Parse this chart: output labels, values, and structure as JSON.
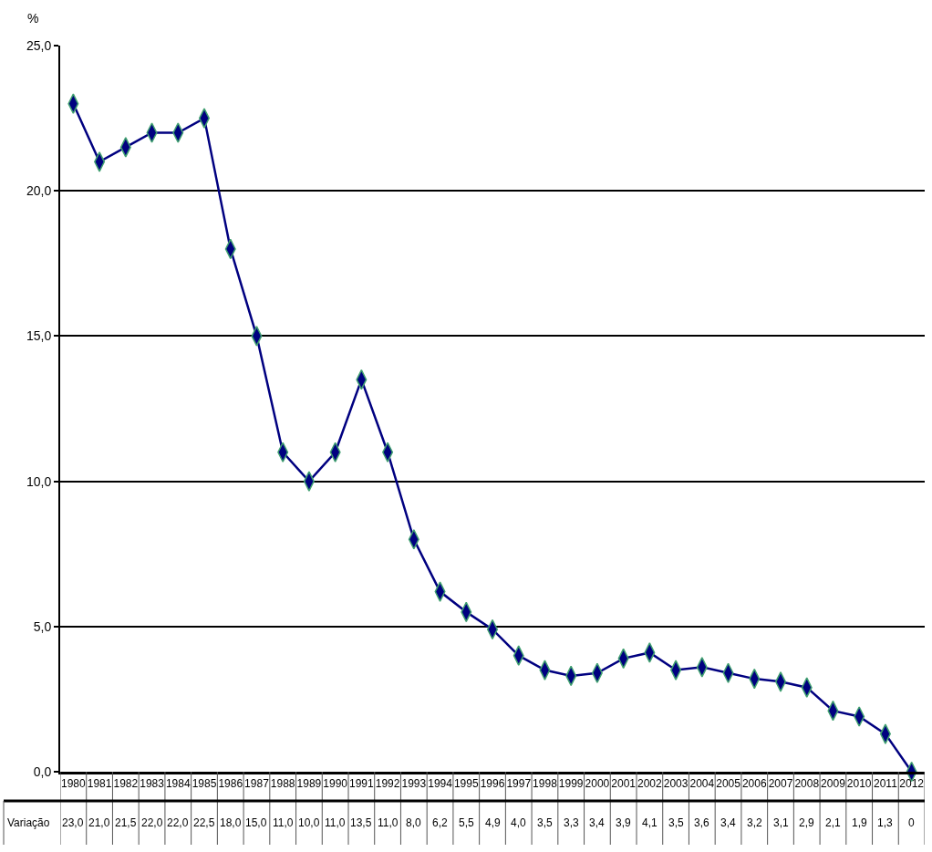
{
  "chart_data": {
    "type": "line",
    "ylabel": "%",
    "categories": [
      "1980",
      "1981",
      "1982",
      "1983",
      "1984",
      "1985",
      "1986",
      "1987",
      "1988",
      "1989",
      "1990",
      "1991",
      "1992",
      "1993",
      "1994",
      "1995",
      "1996",
      "1997",
      "1998",
      "1999",
      "2000",
      "2001",
      "2002",
      "2003",
      "2004",
      "2005",
      "2006",
      "2007",
      "2008",
      "2009",
      "2010",
      "2011",
      "2012"
    ],
    "series": [
      {
        "name": "Variação",
        "color": "#000080",
        "values": [
          23.0,
          21.0,
          21.5,
          22.0,
          22.0,
          22.5,
          18.0,
          15.0,
          11.0,
          10.0,
          11.0,
          13.5,
          11.0,
          8.0,
          6.2,
          5.5,
          4.9,
          4.0,
          3.5,
          3.3,
          3.4,
          3.9,
          4.1,
          3.5,
          3.6,
          3.4,
          3.2,
          3.1,
          2.9,
          2.1,
          1.9,
          1.3,
          0
        ],
        "value_labels": [
          "23,0",
          "21,0",
          "21,5",
          "22,0",
          "22,0",
          "22,5",
          "18,0",
          "15,0",
          "11,0",
          "10,0",
          "11,0",
          "13,5",
          "11,0",
          "8,0",
          "6,2",
          "5,5",
          "4,9",
          "4,0",
          "3,5",
          "3,3",
          "3,4",
          "3,9",
          "4,1",
          "3,5",
          "3,6",
          "3,4",
          "3,2",
          "3,1",
          "2,9",
          "2,1",
          "1,9",
          "1,3",
          "0"
        ]
      }
    ],
    "ylim": [
      0,
      25
    ],
    "yticks": [
      {
        "value": 0,
        "label": "0,0"
      },
      {
        "value": 5,
        "label": "5,0"
      },
      {
        "value": 10,
        "label": "10,0"
      },
      {
        "value": 15,
        "label": "15,0"
      },
      {
        "value": 20,
        "label": "20,0"
      },
      {
        "value": 25,
        "label": "25,0"
      }
    ],
    "grid": "y",
    "legend": false,
    "marker": "diamond",
    "line_style": "solid"
  }
}
